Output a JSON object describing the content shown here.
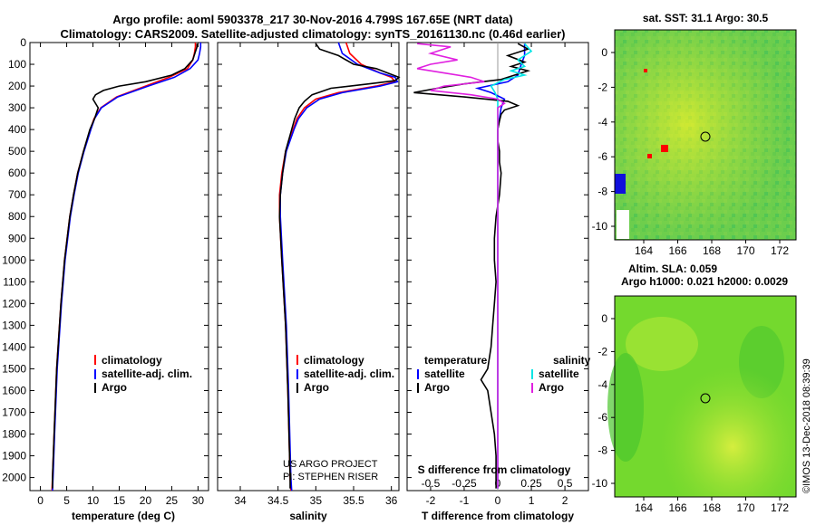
{
  "header": {
    "line1": "Argo profile: aoml 5903378_217 30-Nov-2016 4.799S 167.65E (NRT data)",
    "line2": "Climatology: CARS2009. Satellite-adjusted climatology: synTS_20161130.nc (0.46d earlier)"
  },
  "colors": {
    "climatology": "#ff0000",
    "satellite": "#0000ff",
    "argo": "#000000",
    "s_satellite": "#00e5e5",
    "s_argo": "#e020e0"
  },
  "depth_axis": {
    "min": 0,
    "max": 2060,
    "ticks": [
      0,
      100,
      200,
      300,
      400,
      500,
      600,
      700,
      800,
      900,
      1000,
      1100,
      1200,
      1300,
      1400,
      1500,
      1600,
      1700,
      1800,
      1900,
      2000
    ],
    "labels": [
      "0",
      "100",
      "200",
      "300",
      "400",
      "500",
      "600",
      "700",
      "800",
      "900",
      "1000",
      "1100",
      "1200",
      "1300",
      "1400",
      "1500",
      "1600",
      "1700",
      "1800",
      "1900",
      "2000"
    ]
  },
  "chart_data": [
    {
      "type": "line",
      "name": "temperature",
      "xlabel": "temperature (deg C)",
      "xlim": [
        -2,
        32
      ],
      "xticks": [
        0,
        5,
        10,
        15,
        20,
        25,
        30
      ],
      "xtick_labels": [
        "0",
        "5",
        "10",
        "15",
        "20",
        "25",
        "30"
      ],
      "legend": [
        "climatology",
        "satellite-adj. clim.",
        "Argo"
      ],
      "series": [
        {
          "name": "climatology",
          "color": "#ff0000",
          "depth": [
            0,
            20,
            50,
            80,
            120,
            160,
            200,
            250,
            300,
            350,
            400,
            500,
            600,
            700,
            800,
            1000,
            1200,
            1500,
            1800,
            2000,
            2060
          ],
          "values": [
            29.5,
            29.5,
            29.3,
            29.0,
            28.0,
            24.5,
            20,
            14.5,
            11.5,
            10.2,
            9.5,
            8.2,
            7.1,
            6.3,
            5.6,
            4.6,
            3.9,
            3.1,
            2.6,
            2.3,
            2.2
          ]
        },
        {
          "name": "satellite-adj. clim.",
          "color": "#0000ff",
          "depth": [
            0,
            20,
            50,
            80,
            120,
            160,
            200,
            250,
            300,
            350,
            400,
            500,
            600,
            700,
            800,
            1000,
            1200,
            1500,
            1800,
            2000,
            2060
          ],
          "values": [
            30.5,
            30.5,
            30.3,
            30.0,
            28.5,
            25.5,
            20.5,
            14.7,
            11.6,
            10.3,
            9.6,
            8.3,
            7.2,
            6.4,
            5.7,
            4.7,
            4.0,
            3.2,
            2.7,
            2.4,
            2.3
          ]
        },
        {
          "name": "Argo",
          "color": "#000000",
          "depth": [
            5,
            20,
            50,
            80,
            120,
            150,
            180,
            200,
            220,
            240,
            260,
            300,
            350,
            400,
            500,
            600,
            700,
            800,
            1000,
            1200,
            1500,
            1800,
            2000,
            2050
          ],
          "values": [
            29.8,
            29.8,
            29.4,
            29.0,
            27.5,
            25.0,
            20.0,
            15.0,
            12.0,
            10.5,
            10.0,
            11.0,
            10.3,
            9.4,
            8.2,
            7.1,
            6.3,
            5.6,
            4.6,
            3.9,
            3.1,
            2.6,
            2.3,
            2.3
          ]
        }
      ]
    },
    {
      "type": "line",
      "name": "salinity",
      "xlabel": "salinity",
      "xlim": [
        33.7,
        36.1
      ],
      "xticks": [
        34,
        34.5,
        35,
        35.5,
        36
      ],
      "xtick_labels": [
        "34",
        "34.5",
        "35",
        "35.5",
        "36"
      ],
      "legend": [
        "climatology",
        "satellite-adj. clim.",
        "Argo"
      ],
      "annotations": [
        "US ARGO PROJECT",
        "PI: STEPHEN RISER"
      ],
      "series": [
        {
          "name": "climatology",
          "color": "#ff0000",
          "depth": [
            0,
            50,
            100,
            140,
            160,
            180,
            200,
            230,
            260,
            300,
            350,
            400,
            500,
            600,
            700,
            800,
            1000,
            1300,
            1600,
            2000,
            2060
          ],
          "values": [
            35.4,
            35.45,
            35.6,
            35.85,
            36.0,
            36.05,
            35.8,
            35.3,
            35.0,
            34.85,
            34.75,
            34.7,
            34.6,
            34.55,
            34.52,
            34.52,
            34.55,
            34.6,
            34.63,
            34.66,
            34.67
          ]
        },
        {
          "name": "satellite-adj. clim.",
          "color": "#0000ff",
          "depth": [
            0,
            50,
            100,
            140,
            160,
            180,
            200,
            230,
            260,
            300,
            350,
            400,
            500,
            600,
            700,
            800,
            1000,
            1300,
            1600,
            2000,
            2060
          ],
          "values": [
            35.3,
            35.35,
            35.55,
            35.85,
            36.05,
            36.08,
            35.85,
            35.35,
            35.05,
            34.88,
            34.77,
            34.71,
            34.61,
            34.56,
            34.53,
            34.53,
            34.56,
            34.61,
            34.64,
            34.67,
            34.68
          ]
        },
        {
          "name": "Argo",
          "color": "#000000",
          "depth": [
            5,
            30,
            60,
            100,
            120,
            140,
            160,
            175,
            190,
            210,
            240,
            270,
            300,
            350,
            400,
            500,
            600,
            700,
            800,
            1000,
            1300,
            1600,
            2000,
            2050
          ],
          "values": [
            35.0,
            35.05,
            35.3,
            35.5,
            35.8,
            35.95,
            36.1,
            36.05,
            35.7,
            35.2,
            34.95,
            34.85,
            34.78,
            34.72,
            34.68,
            34.6,
            34.56,
            34.53,
            34.52,
            34.55,
            34.6,
            34.63,
            34.66,
            34.66
          ]
        }
      ]
    },
    {
      "type": "line",
      "name": "differences",
      "xlabel": "T difference from climatology",
      "xlim": [
        -2.7,
        2.7
      ],
      "xticks": [
        -2,
        -1,
        0,
        1,
        2
      ],
      "xtick_labels": [
        "-2",
        "-1",
        "0",
        "1",
        "2"
      ],
      "s_label": "S difference from climatology",
      "s_xticks": [
        -0.5,
        -0.25,
        0,
        0.25,
        0.5
      ],
      "s_xtick_labels": [
        "-0.5",
        "-0.25",
        "0",
        "0.25",
        "0.5"
      ],
      "legend_headers": [
        "temperature",
        "salinity"
      ],
      "legend": [
        "satellite",
        "Argo",
        "satellite",
        "Argo"
      ],
      "series": [
        {
          "name": "T satellite",
          "color": "#0000ff",
          "depth": [
            5,
            60,
            100,
            150,
            180,
            210,
            230,
            260,
            300,
            350,
            400,
            500,
            700,
            900,
            1200,
            1500,
            1800,
            2050
          ],
          "values": [
            0.8,
            0.8,
            0.7,
            0.6,
            0.3,
            -0.6,
            -0.2,
            0.2,
            0.1,
            0.05,
            0,
            0,
            0,
            0,
            0,
            0,
            0,
            0
          ]
        },
        {
          "name": "T Argo",
          "color": "#000000",
          "depth": [
            5,
            30,
            60,
            90,
            110,
            130,
            150,
            170,
            190,
            210,
            230,
            250,
            270,
            290,
            310,
            330,
            360,
            400,
            450,
            500,
            550,
            600,
            700,
            800,
            900,
            1000,
            1100,
            1200,
            1300,
            1400,
            1500,
            1550,
            1600,
            1700,
            1800,
            1900,
            2050
          ],
          "values": [
            0.6,
            0.9,
            0.3,
            0.8,
            0.4,
            0.9,
            0.5,
            0.1,
            -1.0,
            -1.8,
            -2.5,
            -1.0,
            0.3,
            0.6,
            0.2,
            0.1,
            0.05,
            0,
            0,
            0.05,
            0.05,
            0.1,
            0.05,
            -0.05,
            -0.1,
            -0.1,
            -0.05,
            -0.1,
            -0.15,
            -0.2,
            -0.3,
            -0.5,
            -0.3,
            -0.2,
            -0.1,
            -0.05,
            -0.05
          ]
        },
        {
          "name": "S satellite",
          "color": "#00e5e5",
          "depth": [
            5,
            40,
            80,
            110,
            130,
            150,
            170,
            200,
            230,
            260,
            300,
            400,
            500,
            700,
            1000,
            1500,
            2050
          ],
          "values": [
            0.2,
            0.25,
            0.15,
            0.2,
            0.1,
            0.2,
            0.05,
            -0.05,
            -0.02,
            0,
            0,
            0,
            0,
            0,
            0,
            0,
            0
          ]
        },
        {
          "name": "S Argo",
          "color": "#e020e0",
          "depth": [
            5,
            20,
            50,
            80,
            100,
            120,
            140,
            160,
            180,
            200,
            220,
            240,
            260,
            280,
            300,
            350,
            400,
            500,
            700,
            1000,
            1500,
            2050
          ],
          "values": [
            -0.6,
            -0.35,
            -0.5,
            -0.3,
            -0.5,
            -0.6,
            -0.4,
            -0.2,
            -0.1,
            -0.4,
            -0.5,
            -0.2,
            0,
            0.05,
            0,
            0,
            0,
            0,
            0,
            0,
            0,
            0
          ]
        }
      ]
    }
  ],
  "maps": {
    "sst": {
      "title": "sat. SST: 31.1 Argo: 30.5",
      "yticks": [
        "0",
        "-2",
        "-4",
        "-6",
        "-8",
        "-10"
      ],
      "xticks": [
        "164",
        "166",
        "168",
        "170",
        "172"
      ]
    },
    "sla": {
      "title1": "Altim. SLA: 0.059",
      "title2": "Argo h1000: 0.021 h2000: 0.0029",
      "yticks": [
        "0",
        "-2",
        "-4",
        "-6",
        "-8",
        "-10"
      ],
      "xticks": [
        "164",
        "166",
        "168",
        "170",
        "172"
      ]
    }
  },
  "footer": {
    "stamp": "©IMOS 13-Dec-2018 08:39:39"
  }
}
